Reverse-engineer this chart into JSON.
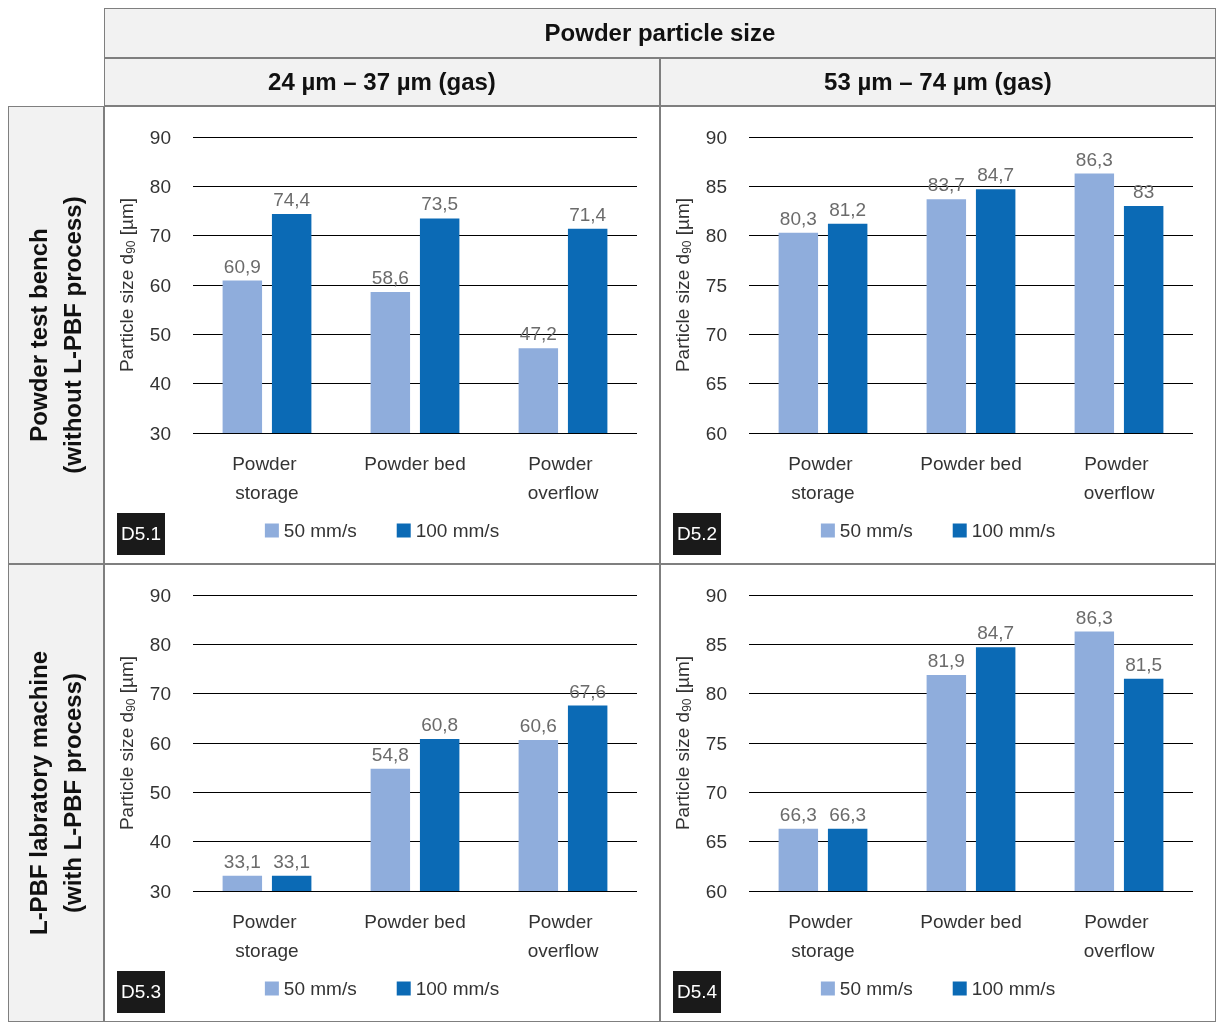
{
  "chart_data": [
    {
      "type": "bar",
      "title": "24 µm – 37 µm (gas)",
      "ylabel": "Particle size d$_{90}$ [µm]",
      "categories": [
        "Powder storage",
        "Powder bed",
        "Powder overflow"
      ],
      "ylim": [
        30,
        90
      ],
      "yticks": [
        30,
        40,
        50,
        60,
        70,
        80,
        90
      ],
      "grid": "y",
      "legend": "bottom",
      "annotations": [
        "D5.1",
        "Powder particle size",
        "Powder test bench\n(without L-PBF process)"
      ],
      "series": [
        {
          "name": "50 mm/s",
          "color": "#8faddc",
          "values": [
            60.9,
            58.6,
            47.2
          ],
          "value_labels": [
            "60,9",
            "58,6",
            "47,2"
          ]
        },
        {
          "name": "100 mm/s",
          "color": "#0b6ab5",
          "values": [
            74.4,
            73.5,
            71.4
          ],
          "value_labels": [
            "74,4",
            "73,5",
            "71,4"
          ]
        }
      ]
    },
    {
      "type": "bar",
      "title": "53 µm – 74 µm (gas)",
      "ylabel": "Particle size d$_{90}$ [µm]",
      "categories": [
        "Powder storage",
        "Powder bed",
        "Powder overflow"
      ],
      "ylim": [
        60,
        90
      ],
      "yticks": [
        60,
        65,
        70,
        75,
        80,
        85,
        90
      ],
      "grid": "y",
      "legend": "bottom",
      "annotations": [
        "D5.2"
      ],
      "series": [
        {
          "name": "50 mm/s",
          "color": "#8faddc",
          "values": [
            80.3,
            83.7,
            86.3
          ],
          "value_labels": [
            "80,3",
            "83,7",
            "86,3"
          ]
        },
        {
          "name": "100 mm/s",
          "color": "#0b6ab5",
          "values": [
            81.2,
            84.7,
            83
          ],
          "value_labels": [
            "81,2",
            "84,7",
            "83"
          ]
        }
      ]
    },
    {
      "type": "bar",
      "ylabel": "Particle size d$_{90}$ [µm]",
      "categories": [
        "Powder storage",
        "Powder bed",
        "Powder overflow"
      ],
      "ylim": [
        30,
        90
      ],
      "yticks": [
        30,
        40,
        50,
        60,
        70,
        80,
        90
      ],
      "grid": "y",
      "legend": "bottom",
      "annotations": [
        "D5.3",
        "L-PBF labratory machine\n(with L-PBF process)"
      ],
      "series": [
        {
          "name": "50 mm/s",
          "color": "#8faddc",
          "values": [
            33.1,
            54.8,
            60.6
          ],
          "value_labels": [
            "33,1",
            "54,8",
            "60,6"
          ]
        },
        {
          "name": "100 mm/s",
          "color": "#0b6ab5",
          "values": [
            33.1,
            60.8,
            67.6
          ],
          "value_labels": [
            "33,1",
            "60,8",
            "67,6"
          ]
        }
      ]
    },
    {
      "type": "bar",
      "ylabel": "Particle size d$_{90}$ [µm]",
      "categories": [
        "Powder storage",
        "Powder bed",
        "Powder overflow"
      ],
      "ylim": [
        60,
        90
      ],
      "yticks": [
        60,
        65,
        70,
        75,
        80,
        85,
        90
      ],
      "grid": "y",
      "legend": "bottom",
      "annotations": [
        "D5.4"
      ],
      "series": [
        {
          "name": "50 mm/s",
          "color": "#8faddc",
          "values": [
            66.3,
            81.9,
            86.3
          ],
          "value_labels": [
            "66,3",
            "81,9",
            "86,3"
          ]
        },
        {
          "name": "100 mm/s",
          "color": "#0b6ab5",
          "values": [
            66.3,
            84.7,
            81.5
          ],
          "value_labels": [
            "66,3",
            "84,7",
            "81,5"
          ]
        }
      ]
    }
  ]
}
